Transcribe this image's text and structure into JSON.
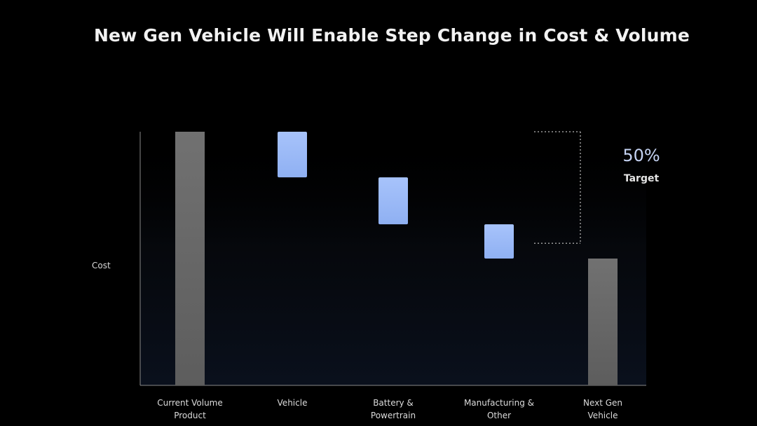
{
  "slide": {
    "title": "New Gen Vehicle Will Enable Step Change in Cost & Volume"
  },
  "chart_data": {
    "type": "bar",
    "subtype": "waterfall",
    "ylabel": "Cost",
    "xlabel": "",
    "grid": false,
    "ylim": [
      0,
      100
    ],
    "categories": [
      "Current Volume\nProduct",
      "Vehicle",
      "Battery &\nPowertrain",
      "Manufacturing &\nOther",
      "Next Gen\nVehicle"
    ],
    "bars": [
      {
        "kind": "total",
        "start": 0,
        "end": 100
      },
      {
        "kind": "decrease",
        "start": 100,
        "end": 82
      },
      {
        "kind": "decrease",
        "start": 82,
        "end": 63.5
      },
      {
        "kind": "decrease",
        "start": 63.5,
        "end": 50
      },
      {
        "kind": "total",
        "start": 0,
        "end": 50
      }
    ],
    "annotation": {
      "value": "50%",
      "label": "Target",
      "bracket_from": 100,
      "bracket_to": 56
    },
    "colors": {
      "total": "#6b6b6b",
      "decrease": "#9fbdf7",
      "axis": "#8a8a8a",
      "bracket": "#9a9a9a"
    }
  }
}
